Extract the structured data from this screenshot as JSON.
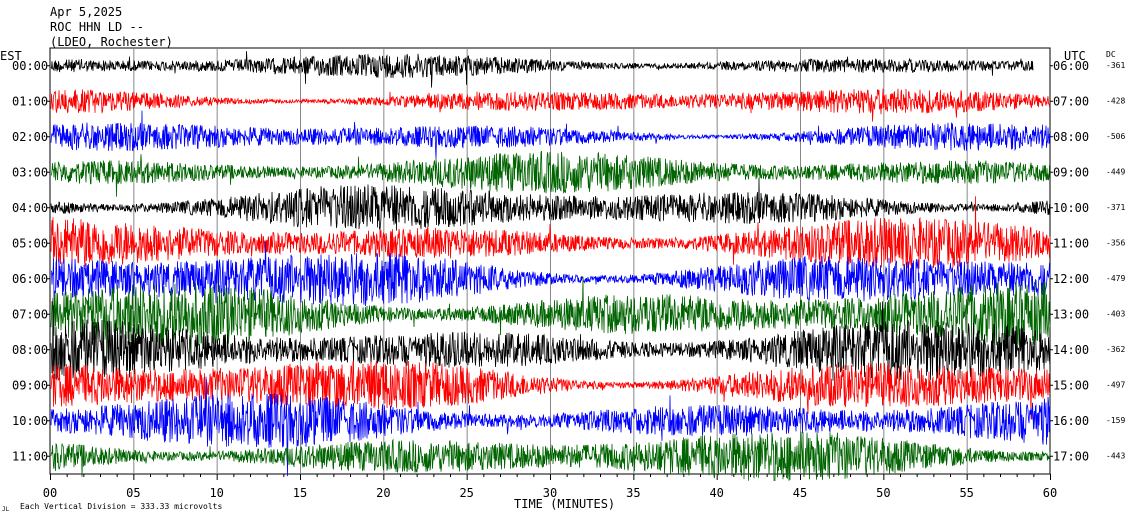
{
  "header": {
    "date": "Apr 5,2025",
    "station": "ROC HHN LD --",
    "network": "(LDEO, Rochester)"
  },
  "left_axis_label": "EST",
  "right_axis_label": "UTC",
  "dc_label": "DC",
  "footer_note": "Each Vertical Division =  333.33 microvolts",
  "footer_marker": "JL",
  "chart_data": {
    "type": "line",
    "xlabel": "TIME (MINUTES)",
    "x_ticks": [
      "00",
      "05",
      "10",
      "15",
      "20",
      "25",
      "30",
      "35",
      "40",
      "45",
      "50",
      "55",
      "60"
    ],
    "xlim": [
      0,
      60
    ],
    "trace_colors": [
      "#000000",
      "#ff0000",
      "#0000ff",
      "#006400"
    ],
    "rows": [
      {
        "est": "00:00",
        "utc": "06:00",
        "dc": "-361",
        "end_minute": 59,
        "amplitude": 0.35
      },
      {
        "est": "01:00",
        "utc": "07:00",
        "dc": "-428",
        "end_minute": 60,
        "amplitude": 0.4
      },
      {
        "est": "02:00",
        "utc": "08:00",
        "dc": "-506",
        "end_minute": 60,
        "amplitude": 0.45
      },
      {
        "est": "03:00",
        "utc": "09:00",
        "dc": "-449",
        "end_minute": 60,
        "amplitude": 0.6
      },
      {
        "est": "04:00",
        "utc": "10:00",
        "dc": "-371",
        "end_minute": 60,
        "amplitude": 0.7
      },
      {
        "est": "05:00",
        "utc": "11:00",
        "dc": "-356",
        "end_minute": 60,
        "amplitude": 0.75
      },
      {
        "est": "06:00",
        "utc": "12:00",
        "dc": "-479",
        "end_minute": 60,
        "amplitude": 0.9
      },
      {
        "est": "07:00",
        "utc": "13:00",
        "dc": "-403",
        "end_minute": 60,
        "amplitude": 0.95
      },
      {
        "est": "08:00",
        "utc": "14:00",
        "dc": "-362",
        "end_minute": 60,
        "amplitude": 0.9
      },
      {
        "est": "09:00",
        "utc": "15:00",
        "dc": "-497",
        "end_minute": 60,
        "amplitude": 0.85
      },
      {
        "est": "10:00",
        "utc": "16:00",
        "dc": "-159",
        "end_minute": 60,
        "amplitude": 0.8
      },
      {
        "est": "11:00",
        "utc": "17:00",
        "dc": "-443",
        "end_minute": 60,
        "amplitude": 0.75
      }
    ]
  }
}
